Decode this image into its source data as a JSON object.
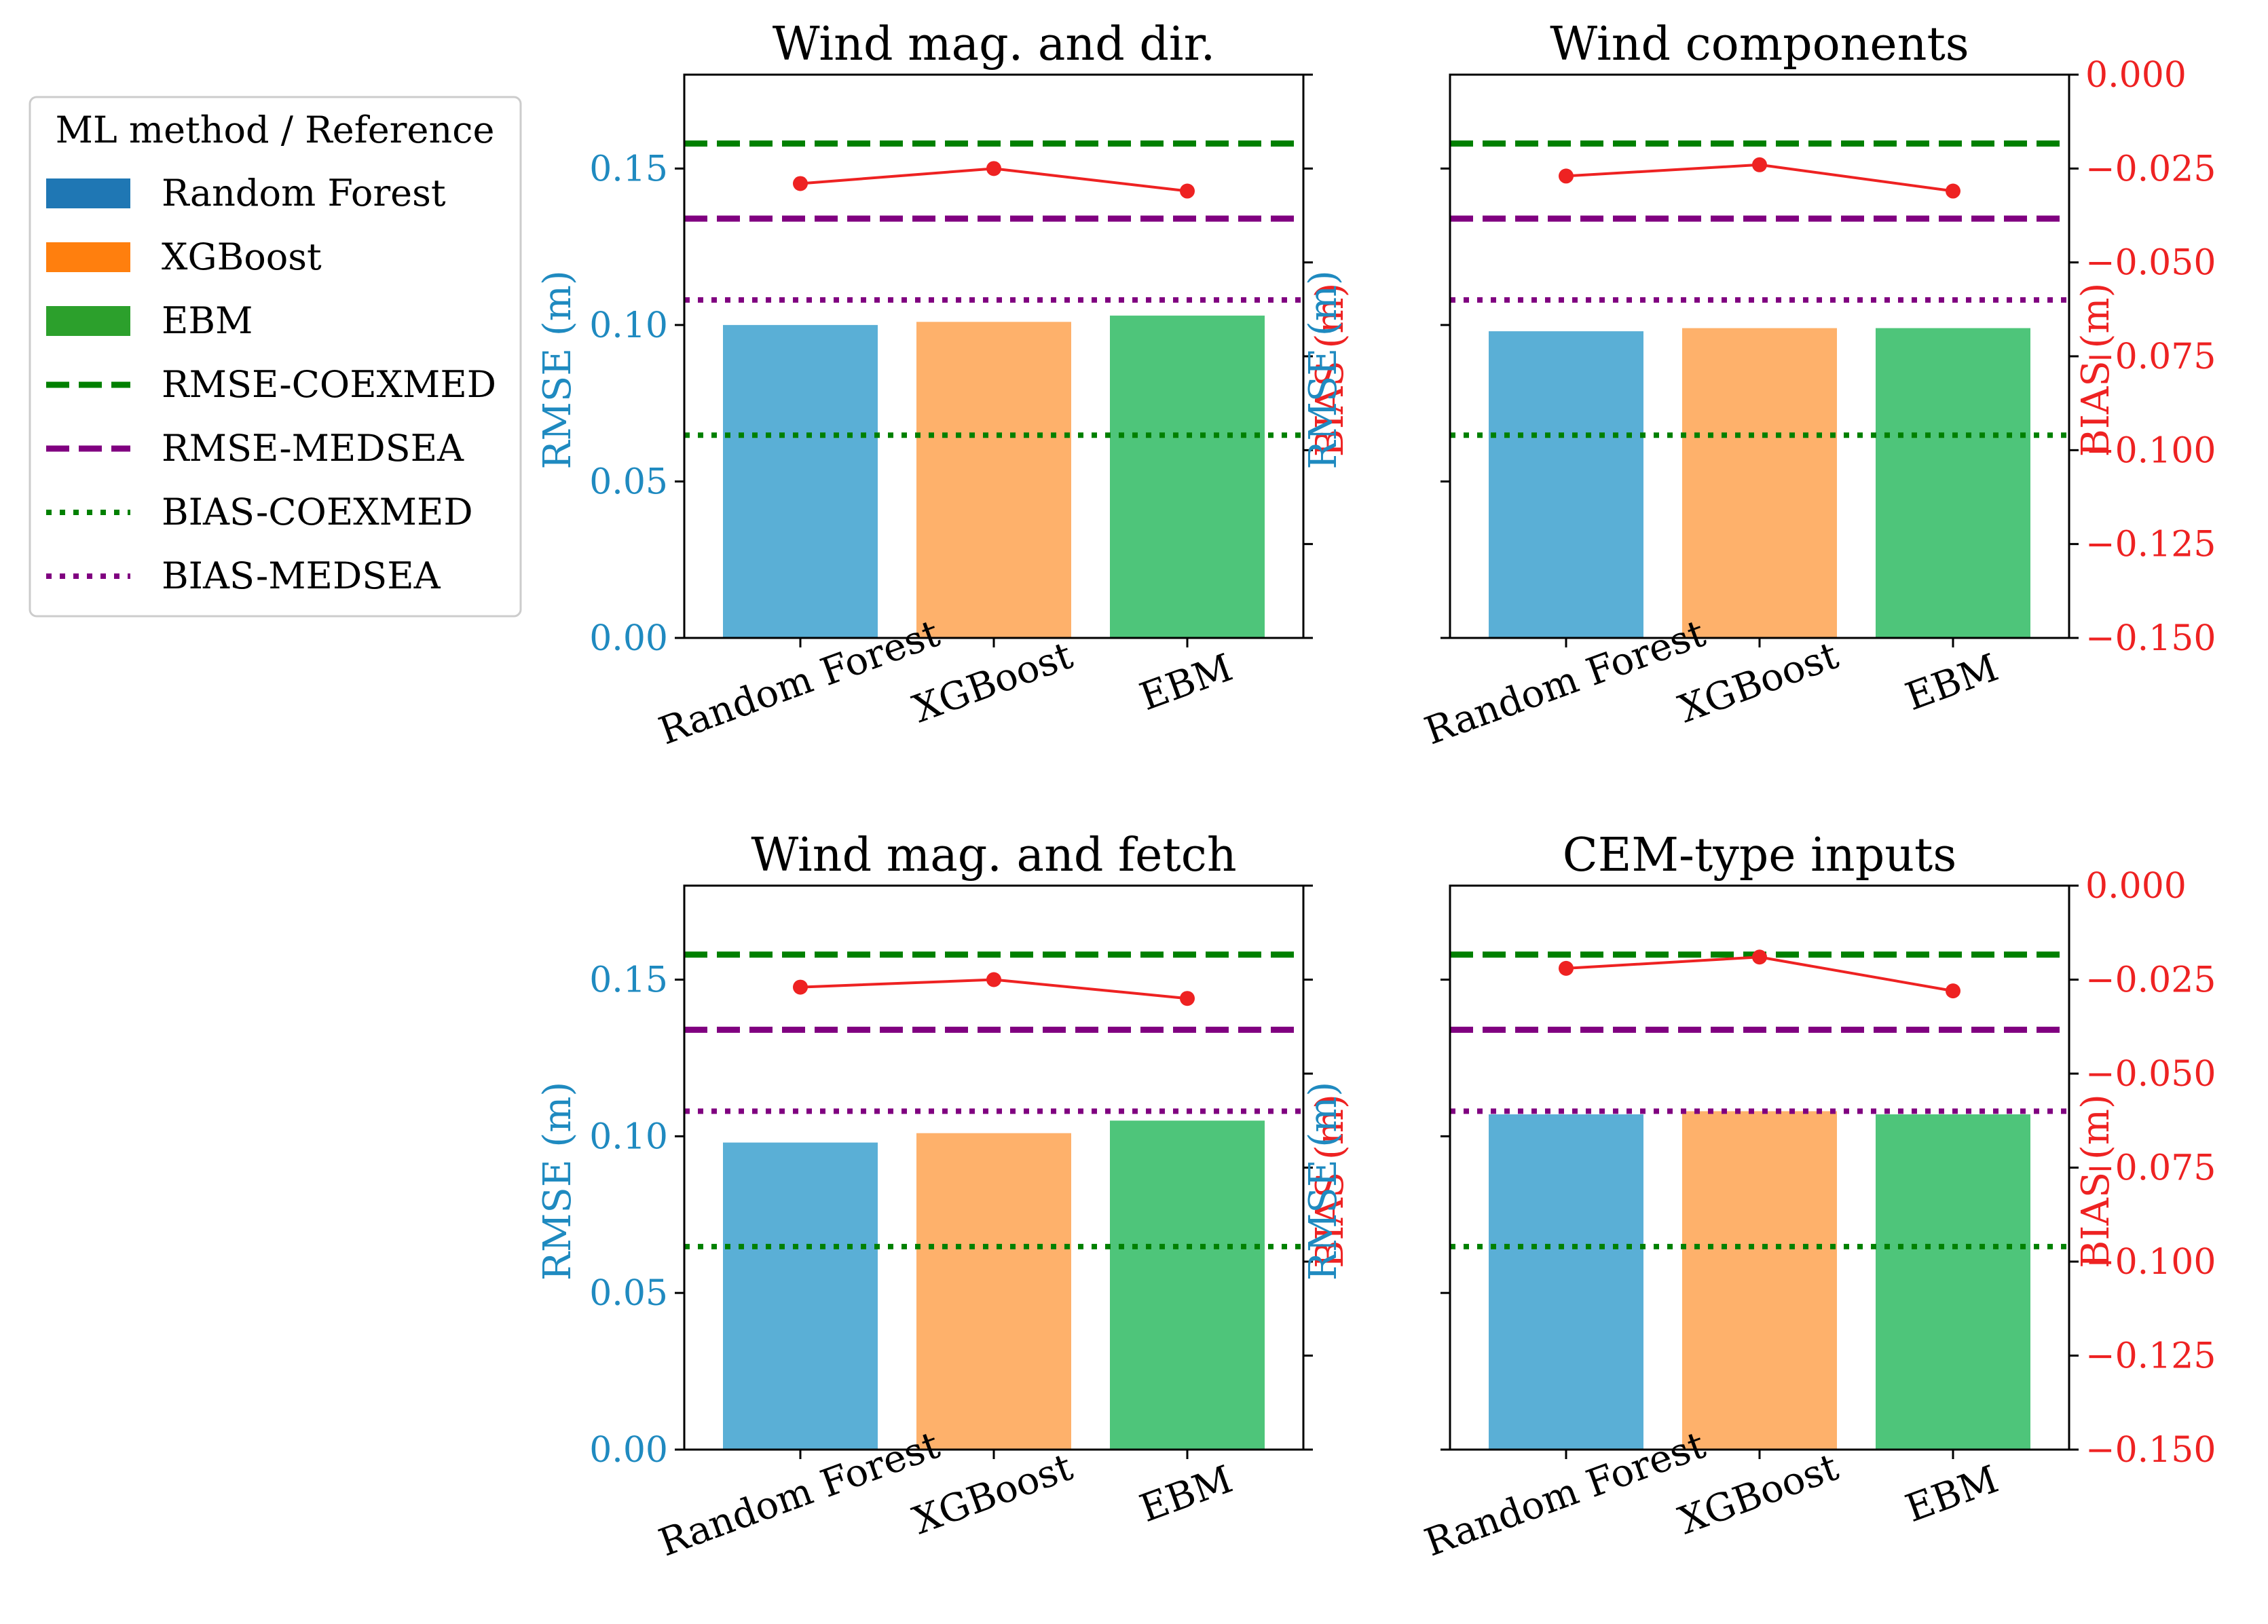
{
  "legend": {
    "title": "ML method / Reference",
    "items": [
      {
        "label": "Random Forest",
        "kind": "patch",
        "color": "#1f77b4"
      },
      {
        "label": "XGBoost",
        "kind": "patch",
        "color": "#ff7f0e"
      },
      {
        "label": "EBM",
        "kind": "patch",
        "color": "#2ca02c"
      },
      {
        "label": "RMSE-COEXMED",
        "kind": "dashed",
        "color": "#008000"
      },
      {
        "label": "RMSE-MEDSEA",
        "kind": "dashed",
        "color": "#800080"
      },
      {
        "label": "BIAS-COEXMED",
        "kind": "dotted",
        "color": "#008000"
      },
      {
        "label": "BIAS-MEDSEA",
        "kind": "dotted",
        "color": "#800080"
      }
    ]
  },
  "colors": {
    "bars": [
      "#5aafd6",
      "#feb16b",
      "#4ec57a"
    ],
    "rmse_axis": "#1f8ac0",
    "bias_axis": "#ee2222",
    "bias_line": "#ee2222",
    "coexmed": "#008000",
    "medsea": "#800080"
  },
  "chart_data": [
    {
      "type": "bar",
      "title": "Wind mag. and dir.",
      "categories": [
        "Random Forest",
        "XGBoost",
        "EBM"
      ],
      "rmse": [
        0.1,
        0.101,
        0.103
      ],
      "bias": [
        -0.029,
        -0.025,
        -0.031
      ],
      "ylabel": "RMSE (m)",
      "y2label": "BIAS (m)",
      "ylim": [
        0,
        0.18
      ],
      "y2lim": [
        -0.15,
        0.0
      ],
      "yticks": [
        0.0,
        0.05,
        0.1,
        0.15
      ],
      "y2ticks": [
        0.0,
        -0.025,
        -0.05,
        -0.075,
        -0.1,
        -0.125,
        -0.15
      ],
      "show_left_ticklabels": true,
      "show_right_ticklabels": false,
      "references": {
        "rmse_coexmed": 0.158,
        "rmse_medsea": 0.134,
        "bias_coexmed": -0.096,
        "bias_medsea": -0.06
      }
    },
    {
      "type": "bar",
      "title": "Wind components",
      "categories": [
        "Random Forest",
        "XGBoost",
        "EBM"
      ],
      "rmse": [
        0.098,
        0.099,
        0.099
      ],
      "bias": [
        -0.027,
        -0.024,
        -0.031
      ],
      "ylabel": "RMSE (m)",
      "y2label": "BIAS (m)",
      "ylim": [
        0,
        0.18
      ],
      "y2lim": [
        -0.15,
        0.0
      ],
      "yticks": [
        0.0,
        0.05,
        0.1,
        0.15
      ],
      "y2ticks": [
        0.0,
        -0.025,
        -0.05,
        -0.075,
        -0.1,
        -0.125,
        -0.15
      ],
      "show_left_ticklabels": false,
      "show_right_ticklabels": true,
      "references": {
        "rmse_coexmed": 0.158,
        "rmse_medsea": 0.134,
        "bias_coexmed": -0.096,
        "bias_medsea": -0.06
      }
    },
    {
      "type": "bar",
      "title": "Wind mag. and fetch",
      "categories": [
        "Random Forest",
        "XGBoost",
        "EBM"
      ],
      "rmse": [
        0.098,
        0.101,
        0.105
      ],
      "bias": [
        -0.027,
        -0.025,
        -0.03
      ],
      "ylabel": "RMSE (m)",
      "y2label": "BIAS (m)",
      "ylim": [
        0,
        0.18
      ],
      "y2lim": [
        -0.15,
        0.0
      ],
      "yticks": [
        0.0,
        0.05,
        0.1,
        0.15
      ],
      "y2ticks": [
        0.0,
        -0.025,
        -0.05,
        -0.075,
        -0.1,
        -0.125,
        -0.15
      ],
      "show_left_ticklabels": true,
      "show_right_ticklabels": false,
      "references": {
        "rmse_coexmed": 0.158,
        "rmse_medsea": 0.134,
        "bias_coexmed": -0.096,
        "bias_medsea": -0.06
      }
    },
    {
      "type": "bar",
      "title": "CEM-type inputs",
      "categories": [
        "Random Forest",
        "XGBoost",
        "EBM"
      ],
      "rmse": [
        0.107,
        0.108,
        0.107
      ],
      "bias": [
        -0.022,
        -0.019,
        -0.028
      ],
      "ylabel": "RMSE (m)",
      "y2label": "BIAS (m)",
      "ylim": [
        0,
        0.18
      ],
      "y2lim": [
        -0.15,
        0.0
      ],
      "yticks": [
        0.0,
        0.05,
        0.1,
        0.15
      ],
      "y2ticks": [
        0.0,
        -0.025,
        -0.05,
        -0.075,
        -0.1,
        -0.125,
        -0.15
      ],
      "show_left_ticklabels": false,
      "show_right_ticklabels": true,
      "references": {
        "rmse_coexmed": 0.158,
        "rmse_medsea": 0.134,
        "bias_coexmed": -0.096,
        "bias_medsea": -0.06
      }
    }
  ]
}
